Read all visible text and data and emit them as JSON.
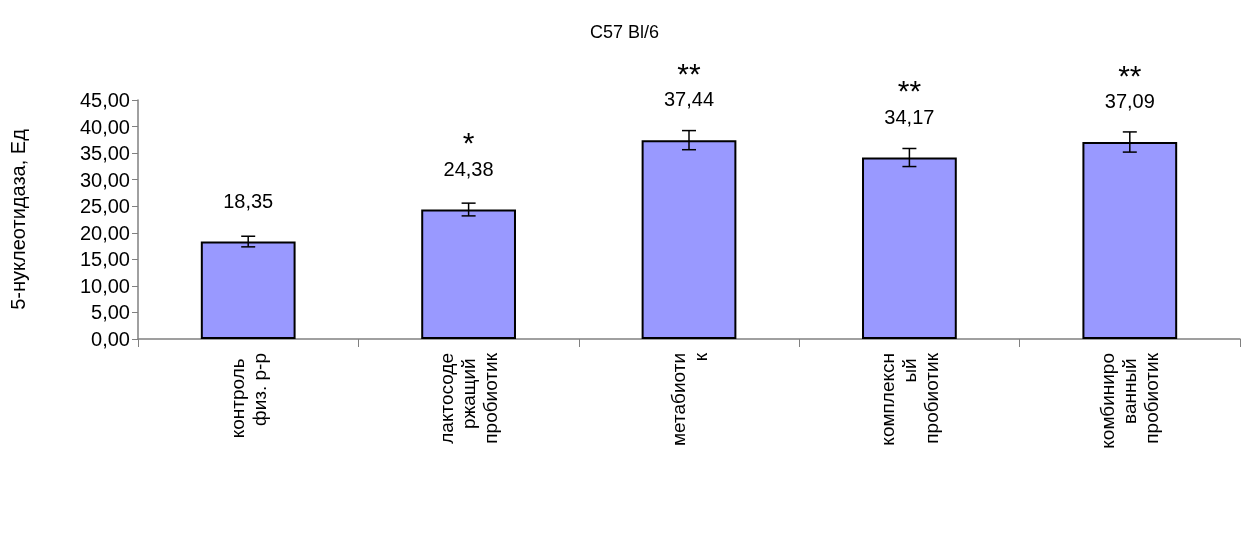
{
  "chart_data": {
    "type": "bar",
    "title": "C57 Bl/6",
    "ylabel": "5-нуклеотидаза, Ед",
    "categories": [
      "контроль физ. р-р",
      "лактосодержащий пробиотик",
      "метабиотик",
      "комплексный пробиотик",
      "комбинированный пробиотик"
    ],
    "values": [
      18.35,
      24.38,
      37.44,
      34.17,
      37.09
    ],
    "value_labels": [
      "18,35",
      "24,38",
      "37,44",
      "34,17",
      "37,09"
    ],
    "errors": [
      1.0,
      1.2,
      1.8,
      1.7,
      1.9
    ],
    "color": "#9999ff",
    "ylim": [
      0,
      45
    ],
    "yticks": [
      {
        "value": 0,
        "label": "0,00"
      },
      {
        "value": 5,
        "label": "5,00"
      },
      {
        "value": 10,
        "label": "10,00"
      },
      {
        "value": 15,
        "label": "15,00"
      },
      {
        "value": 20,
        "label": "20,00"
      },
      {
        "value": 25,
        "label": "25,00"
      },
      {
        "value": 30,
        "label": "30,00"
      },
      {
        "value": 35,
        "label": "35,00"
      },
      {
        "value": 40,
        "label": "40,00"
      },
      {
        "value": 45,
        "label": "45,00"
      }
    ],
    "annotations": [
      "*",
      "**",
      "**",
      "**"
    ],
    "grid": false
  }
}
